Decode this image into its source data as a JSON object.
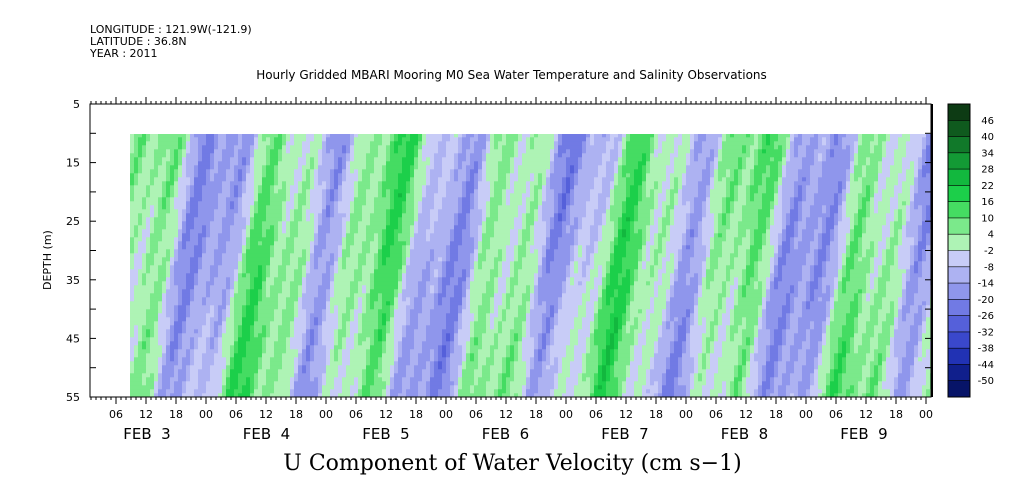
{
  "header": {
    "longitude": "LONGITUDE : 121.9W(-121.9)",
    "latitude": "LATITUDE : 36.8N",
    "year": "YEAR : 2011",
    "title": "Hourly Gridded MBARI Mooring M0 Sea Water Temperature and Salinity Observations",
    "bottom_title": "U Component of Water Velocity (cm s−1)"
  },
  "chart_data": {
    "type": "heatmap",
    "title": "Hourly Gridded MBARI Mooring M0 Sea Water Temperature and Salinity Observations",
    "variable": "U Component of Water Velocity (cm s−1)",
    "ylabel": "DEPTH (m)",
    "y_reversed": true,
    "ylim": [
      5,
      55
    ],
    "data_depth_range": [
      10,
      55
    ],
    "y_ticks": [
      5,
      15,
      25,
      35,
      45,
      55
    ],
    "x_hour_ticks": [
      "06",
      "12",
      "18",
      "00",
      "06",
      "12",
      "18",
      "00",
      "06",
      "12",
      "18",
      "00",
      "06",
      "12",
      "18",
      "00",
      "06",
      "12",
      "18",
      "00",
      "06",
      "12",
      "18",
      "00",
      "06",
      "12",
      "18",
      "00"
    ],
    "x_date_labels": [
      "FEB  3",
      "FEB  4",
      "FEB  5",
      "FEB  6",
      "FEB  7",
      "FEB  8",
      "FEB  9"
    ],
    "colorbar": {
      "levels": [
        46,
        40,
        34,
        28,
        22,
        16,
        10,
        4,
        -2,
        -8,
        -14,
        -20,
        -26,
        -32,
        -38,
        -44,
        -50
      ],
      "colors": [
        "#0d3b14",
        "#0f5a1e",
        "#11792a",
        "#139a35",
        "#12b83e",
        "#1ccf4a",
        "#45dc62",
        "#7be98b",
        "#aef3b5",
        "#c8ccf7",
        "#adb2f2",
        "#8f96ec",
        "#717ae4",
        "#5560da",
        "#3a48cc",
        "#2132b4",
        "#101f8c",
        "#071468"
      ]
    },
    "pattern_note": "Alternating positive (green) and negative (blue) current bands with a roughly tidal period across Feb 3-9; values mostly between -20 and +16 cm/s."
  }
}
